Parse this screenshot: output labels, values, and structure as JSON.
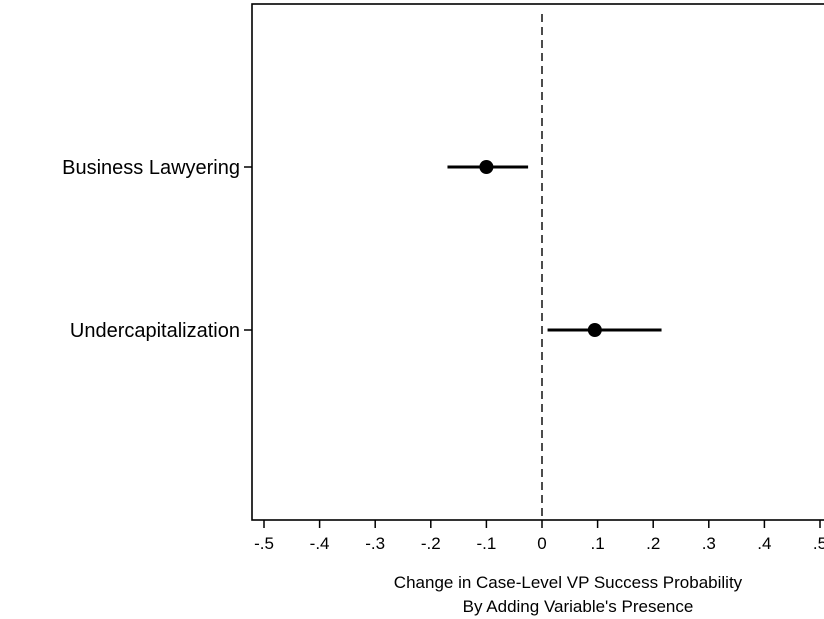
{
  "chart_data": {
    "type": "scatter",
    "title": "",
    "xlabel_lines": [
      "Change in Case-Level VP Success Probability",
      "By Adding Variable's Presence"
    ],
    "ylabel": "",
    "xlim": [
      -0.5,
      0.5
    ],
    "x_ticks": [
      -0.5,
      -0.4,
      -0.3,
      -0.2,
      -0.1,
      0,
      0.1,
      0.2,
      0.3,
      0.4,
      0.5
    ],
    "x_tick_labels": [
      "-.5",
      "-.4",
      "-.3",
      "-.2",
      "-.1",
      "0",
      ".1",
      ".2",
      ".3",
      ".4",
      ".5"
    ],
    "reference_line": {
      "x": 0,
      "style": "dashed"
    },
    "grid": false,
    "legend": "none",
    "categories": [
      "Business Lawyering",
      "Undercapitalization"
    ],
    "points": [
      {
        "category": "Business Lawyering",
        "estimate": -0.1,
        "ci_low": -0.17,
        "ci_high": -0.025
      },
      {
        "category": "Undercapitalization",
        "estimate": 0.095,
        "ci_low": 0.01,
        "ci_high": 0.215
      }
    ],
    "marker_color": "#000000",
    "line_color": "#000000"
  }
}
